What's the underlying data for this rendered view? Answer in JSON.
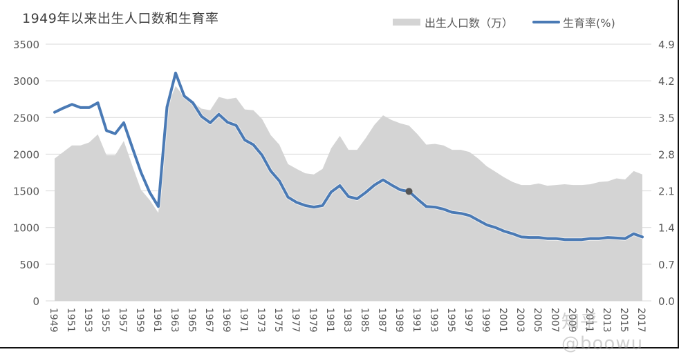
{
  "title": "1949年以来出生人口数和生育率",
  "legend": {
    "births_label": "出生人口数（万）",
    "fertility_label": "生育率(%)"
  },
  "colors": {
    "area": "#d4d4d4",
    "line": "#4a7ab5",
    "marker": "#555555",
    "grid": "#d9d9d9",
    "text": "#595959"
  },
  "watermark": "知乎 @boowu",
  "axes": {
    "left_ticks": [
      "3500",
      "3000",
      "2500",
      "2000",
      "1500",
      "1000",
      "500",
      "0"
    ],
    "right_ticks": [
      "4.9",
      "4.2",
      "3.5",
      "2.8",
      "2.1",
      "1.4",
      "0.7",
      "0.0"
    ],
    "x_ticks": [
      "1949",
      "1951",
      "1953",
      "1955",
      "1957",
      "1959",
      "1961",
      "1963",
      "1965",
      "1967",
      "1969",
      "1971",
      "1973",
      "1975",
      "1977",
      "1979",
      "1981",
      "1983",
      "1985",
      "1987",
      "1989",
      "1991",
      "1993",
      "1995",
      "1997",
      "1999",
      "2001",
      "2003",
      "2005",
      "2007",
      "2009",
      "2011",
      "2013",
      "2015",
      "2017"
    ]
  },
  "chart_data": {
    "type": "area+line (dual axis)",
    "title": "1949年以来出生人口数和生育率",
    "xlabel": "",
    "ylabel_left": "出生人口数（万）",
    "ylabel_right": "生育率(%)",
    "ylim_left": [
      0,
      3500
    ],
    "ylim_right": [
      0.0,
      4.9
    ],
    "grid": true,
    "legend_position": "top-right",
    "x": [
      1949,
      1950,
      1951,
      1952,
      1953,
      1954,
      1955,
      1956,
      1957,
      1958,
      1959,
      1960,
      1961,
      1962,
      1963,
      1964,
      1965,
      1966,
      1967,
      1968,
      1969,
      1970,
      1971,
      1972,
      1973,
      1974,
      1975,
      1976,
      1977,
      1978,
      1979,
      1980,
      1981,
      1982,
      1983,
      1984,
      1985,
      1986,
      1987,
      1988,
      1989,
      1990,
      1991,
      1992,
      1993,
      1994,
      1995,
      1996,
      1997,
      1998,
      1999,
      2000,
      2001,
      2002,
      2003,
      2004,
      2005,
      2006,
      2007,
      2008,
      2009,
      2010,
      2011,
      2012,
      2013,
      2014,
      2015,
      2016,
      2017
    ],
    "series": [
      {
        "name": "出生人口数（万）",
        "type": "area",
        "axis": "left",
        "values": [
          1940,
          2030,
          2120,
          2120,
          2160,
          2270,
          1985,
          1985,
          2180,
          1840,
          1515,
          1375,
          1200,
          2640,
          2930,
          2780,
          2710,
          2620,
          2600,
          2780,
          2750,
          2770,
          2610,
          2600,
          2480,
          2260,
          2130,
          1865,
          1800,
          1740,
          1725,
          1800,
          2080,
          2250,
          2060,
          2060,
          2220,
          2400,
          2530,
          2465,
          2420,
          2390,
          2270,
          2130,
          2140,
          2120,
          2060,
          2060,
          2030,
          1940,
          1835,
          1760,
          1685,
          1620,
          1580,
          1580,
          1600,
          1570,
          1580,
          1590,
          1580,
          1580,
          1590,
          1620,
          1630,
          1670,
          1655,
          1770,
          1725
        ]
      },
      {
        "name": "生育率(%)",
        "type": "line",
        "axis": "right",
        "values": [
          3.6,
          3.68,
          3.75,
          3.69,
          3.69,
          3.78,
          3.25,
          3.19,
          3.4,
          2.92,
          2.45,
          2.07,
          1.8,
          3.7,
          4.35,
          3.91,
          3.78,
          3.52,
          3.4,
          3.56,
          3.41,
          3.35,
          3.07,
          2.98,
          2.78,
          2.48,
          2.29,
          1.98,
          1.88,
          1.82,
          1.79,
          1.82,
          2.08,
          2.2,
          1.99,
          1.95,
          2.07,
          2.21,
          2.31,
          2.21,
          2.12,
          2.09,
          1.94,
          1.8,
          1.79,
          1.75,
          1.69,
          1.67,
          1.63,
          1.54,
          1.45,
          1.4,
          1.33,
          1.28,
          1.22,
          1.21,
          1.21,
          1.19,
          1.19,
          1.17,
          1.17,
          1.17,
          1.19,
          1.19,
          1.21,
          1.2,
          1.19,
          1.28,
          1.22
        ]
      }
    ],
    "annotations": [
      {
        "type": "marker",
        "x": 1990,
        "series": "生育率(%)"
      }
    ]
  }
}
